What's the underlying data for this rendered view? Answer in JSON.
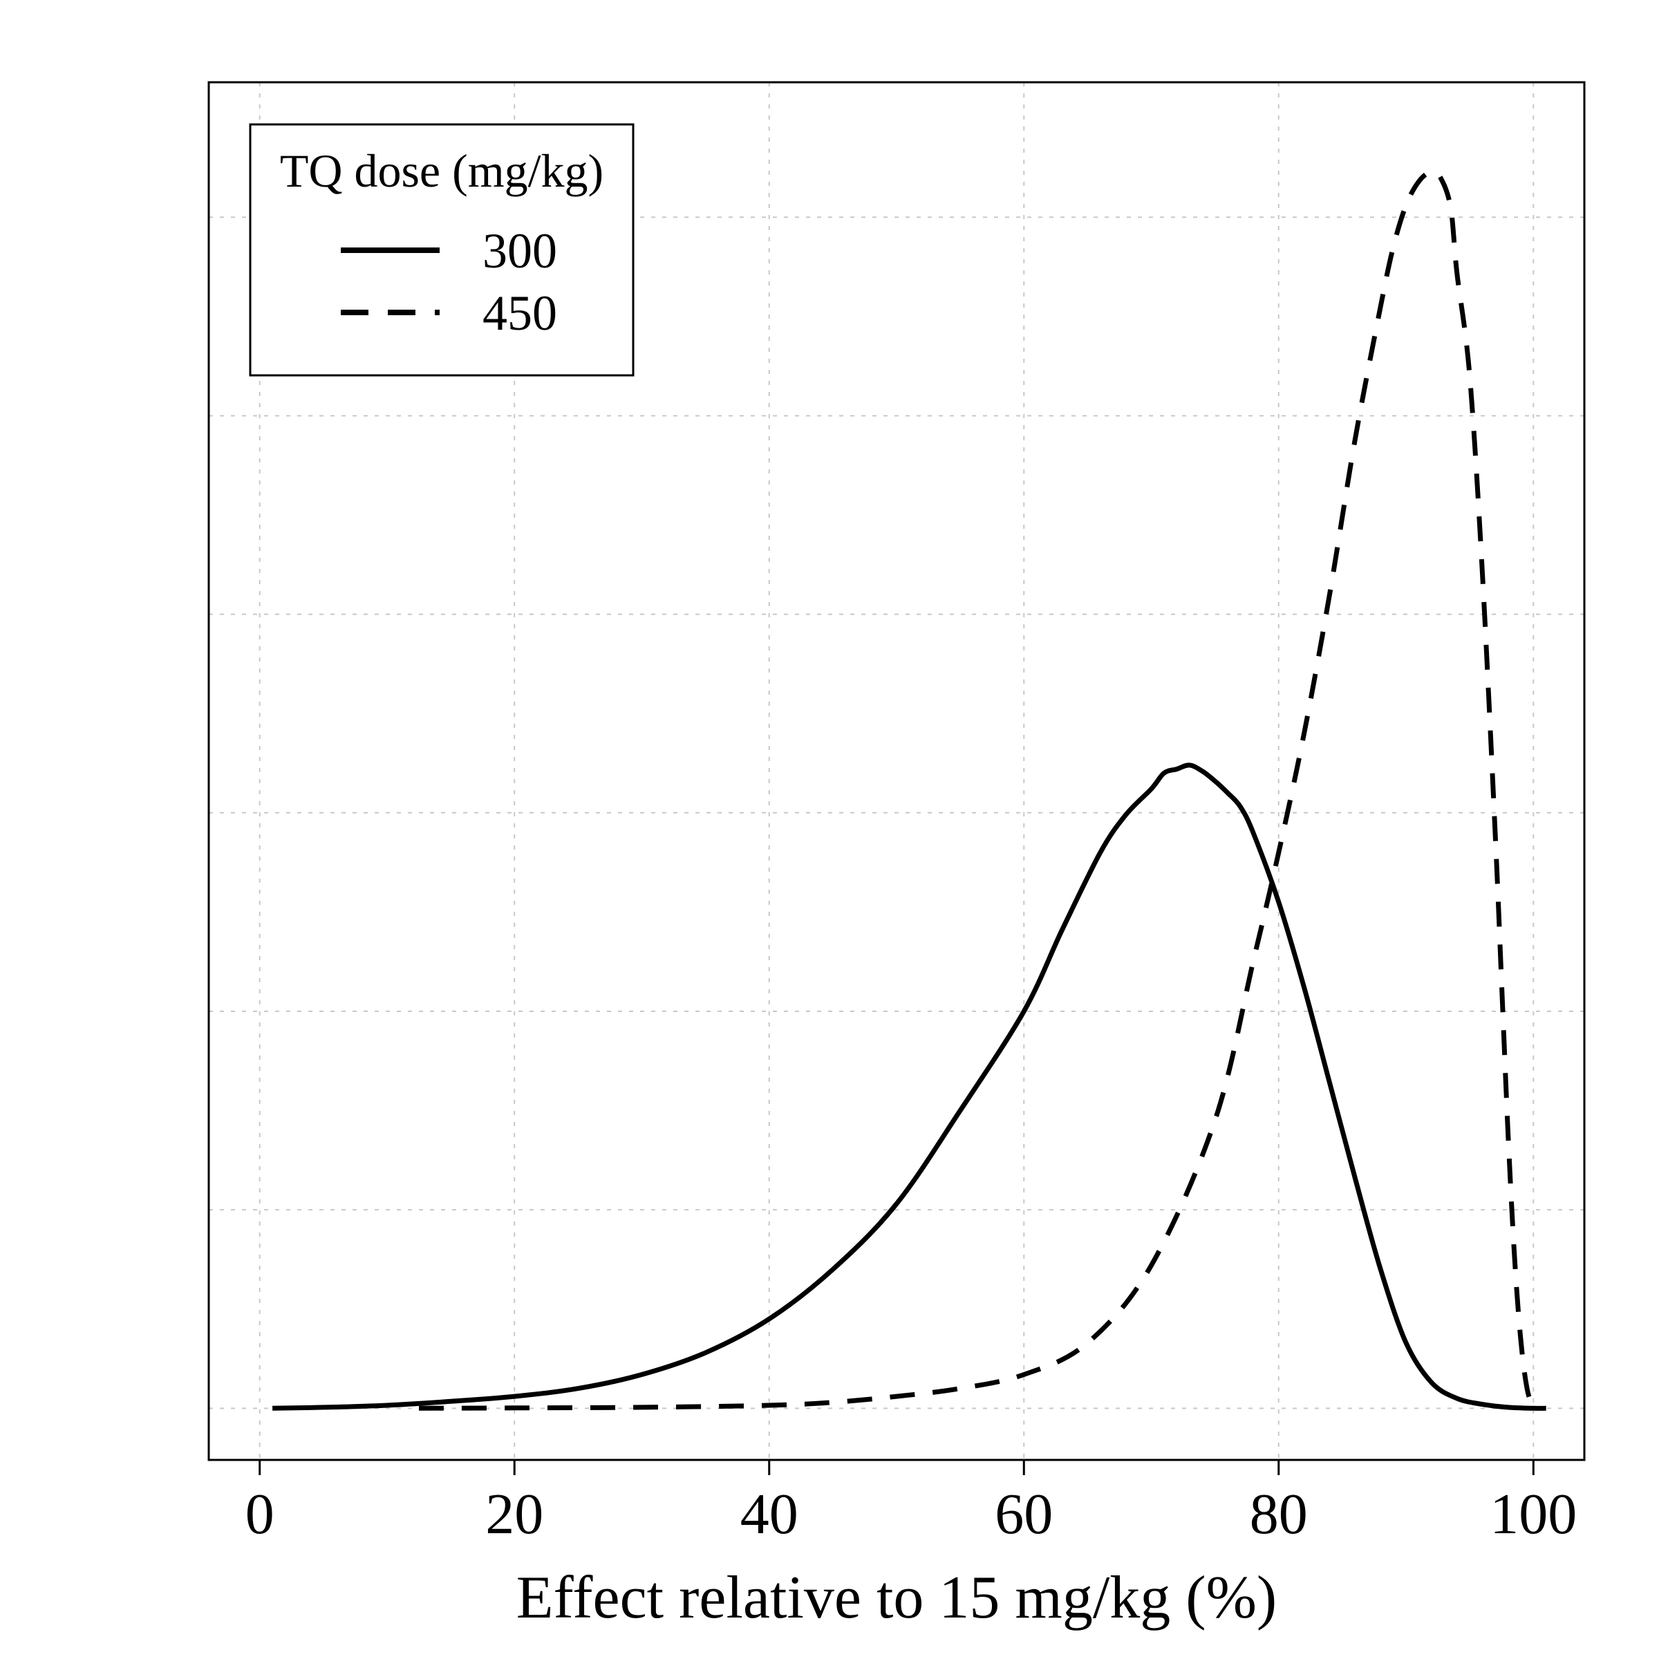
{
  "chart_data": {
    "type": "line",
    "title": "",
    "xlabel": "Effect relative to 15 mg/kg (%)",
    "ylabel": "",
    "xlim": [
      -4,
      104
    ],
    "ylim": [
      -0.26,
      6.68
    ],
    "x_ticks": [
      0,
      20,
      40,
      60,
      80,
      100
    ],
    "x_tick_labels": [
      "0",
      "20",
      "40",
      "60",
      "80",
      "100"
    ],
    "y_gridlines": [
      0,
      1,
      2,
      3,
      4,
      5,
      6
    ],
    "y_tick_labels_shown": false,
    "grid": true,
    "legend": {
      "title": "TQ dose (mg/kg)",
      "position": "top-left"
    },
    "series": [
      {
        "name": "300",
        "line_style": "solid",
        "color": "#000000",
        "x": [
          1,
          5,
          10,
          15,
          20,
          25,
          30,
          35,
          40,
          45,
          50,
          55,
          60,
          63,
          66,
          68,
          70,
          71,
          72,
          73,
          74,
          75,
          76,
          77,
          78,
          80,
          82,
          84,
          86,
          88,
          90,
          92,
          94,
          96,
          98,
          100,
          101
        ],
        "y": [
          0,
          0.005,
          0.015,
          0.035,
          0.06,
          0.1,
          0.17,
          0.28,
          0.45,
          0.7,
          1.03,
          1.5,
          2.0,
          2.41,
          2.8,
          2.99,
          3.12,
          3.2,
          3.22,
          3.24,
          3.21,
          3.16,
          3.1,
          3.03,
          2.9,
          2.55,
          2.12,
          1.64,
          1.16,
          0.7,
          0.33,
          0.13,
          0.05,
          0.02,
          0.005,
          0,
          0
        ]
      },
      {
        "name": "450",
        "line_style": "dashed",
        "color": "#000000",
        "x": [
          12.5,
          20,
          30,
          40,
          45,
          50,
          55,
          60,
          65,
          70,
          75,
          78,
          80,
          82,
          84,
          86,
          88,
          89,
          90,
          91,
          92,
          92.7,
          93.5,
          94,
          95,
          96,
          97,
          97.5,
          98,
          98.5,
          99,
          99.5,
          100
        ],
        "y": [
          0,
          0.002,
          0.005,
          0.015,
          0.03,
          0.06,
          0.1,
          0.17,
          0.33,
          0.72,
          1.45,
          2.25,
          2.8,
          3.4,
          4.1,
          4.88,
          5.55,
          5.85,
          6.06,
          6.18,
          6.23,
          6.2,
          6.05,
          5.72,
          5.2,
          4.2,
          2.9,
          2.15,
          1.4,
          0.78,
          0.35,
          0.1,
          0
        ]
      }
    ]
  }
}
